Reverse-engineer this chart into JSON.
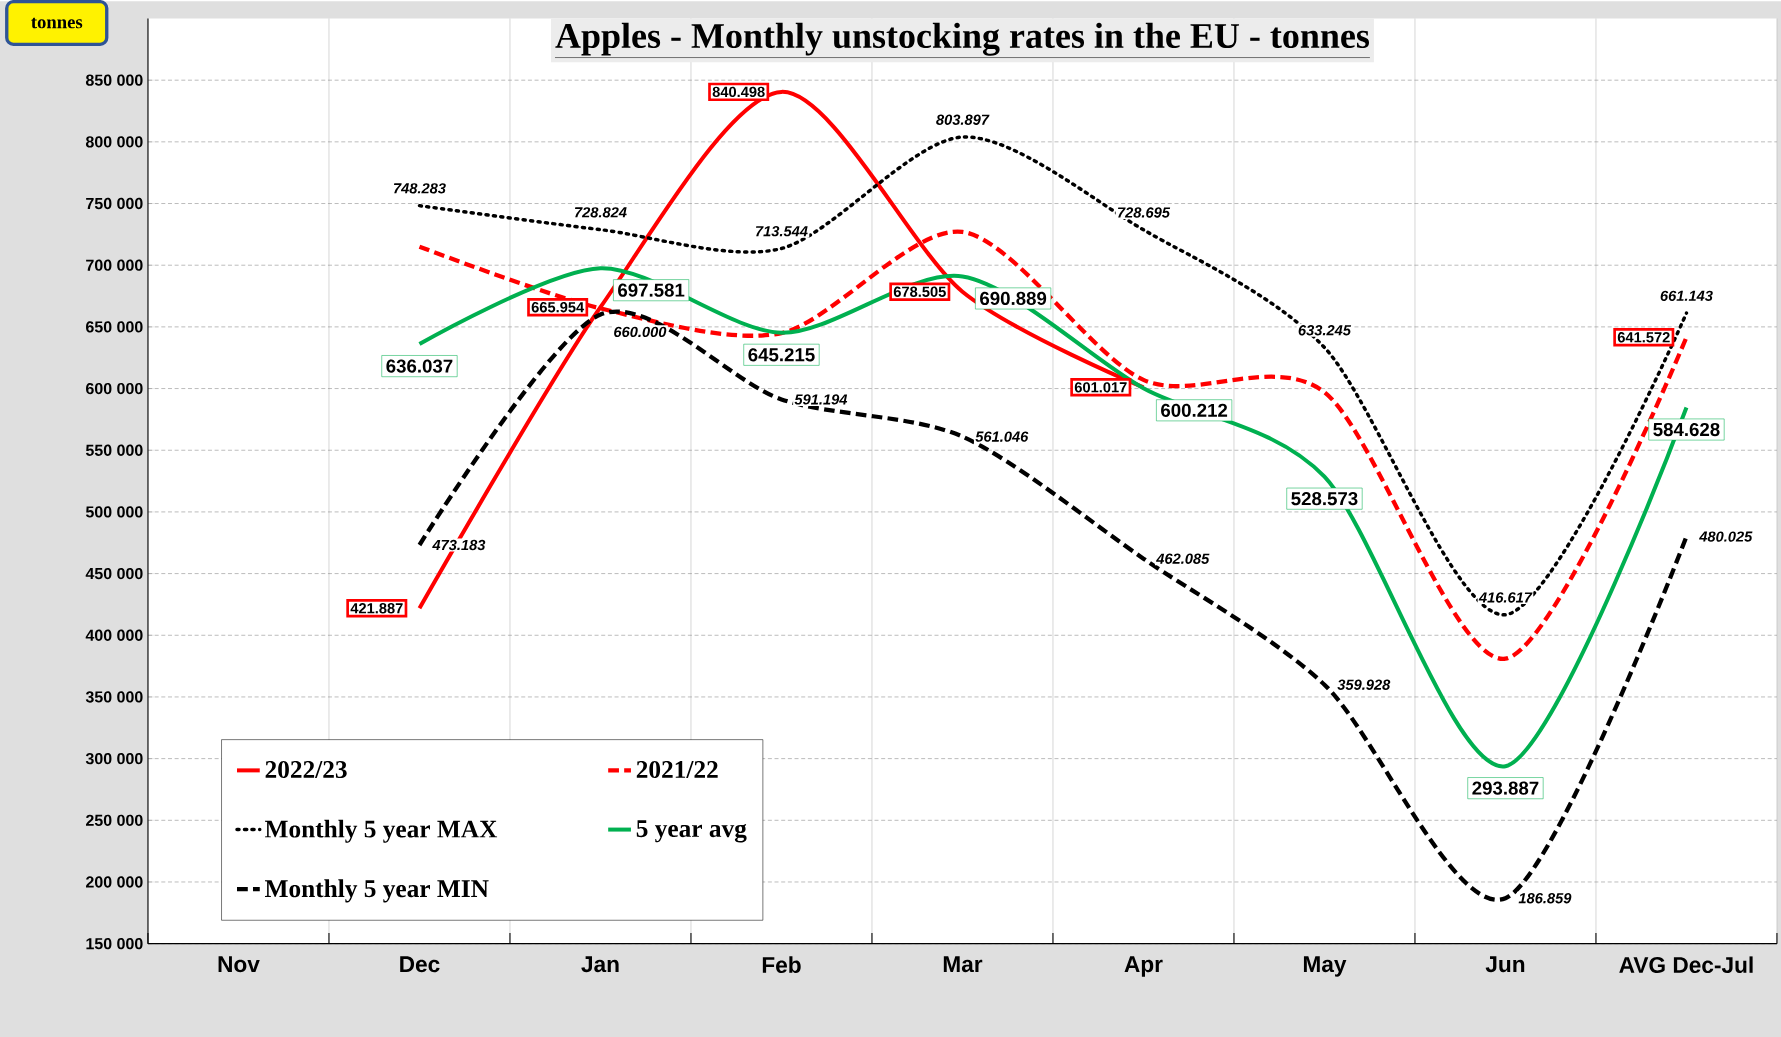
{
  "chart_data": {
    "type": "line",
    "title": "Apples - Monthly unstocking rates in the EU -  tonnes",
    "ylabel": "tonnes",
    "categories": [
      "Nov",
      "Dec",
      "Jan",
      "Feb",
      "Mar",
      "Apr",
      "May",
      "Jun",
      "AVG Dec-Jul"
    ],
    "ylim": [
      150000,
      900000
    ],
    "yticks": [
      {
        "value": 150000,
        "label": "150 000"
      },
      {
        "value": 200000,
        "label": "200 000"
      },
      {
        "value": 250000,
        "label": "250 000"
      },
      {
        "value": 300000,
        "label": "300 000"
      },
      {
        "value": 350000,
        "label": "350 000"
      },
      {
        "value": 400000,
        "label": "400 000"
      },
      {
        "value": 450000,
        "label": "450 000"
      },
      {
        "value": 500000,
        "label": "500 000"
      },
      {
        "value": 550000,
        "label": "550 000"
      },
      {
        "value": 600000,
        "label": "600 000"
      },
      {
        "value": 650000,
        "label": "650 000"
      },
      {
        "value": 700000,
        "label": "700 000"
      },
      {
        "value": 750000,
        "label": "750 000"
      },
      {
        "value": 800000,
        "label": "800 000"
      },
      {
        "value": 850000,
        "label": "850 000"
      }
    ],
    "grid": true,
    "legend": "bottom left",
    "marker": "none",
    "series": [
      {
        "name": "2022/23",
        "color": "#ff0000",
        "line_style": "solid",
        "values": [
          null,
          421887,
          665954,
          840498,
          678505,
          601017,
          null,
          null,
          null
        ],
        "value_labels": [
          null,
          "421.887",
          "665.954",
          "840.498",
          "678.505",
          "601.017",
          null,
          null,
          null
        ]
      },
      {
        "name": "2021/22",
        "color": "#ff0000",
        "line_style": "dashed",
        "values": [
          null,
          715000,
          665000,
          645000,
          727000,
          607000,
          597000,
          381000,
          641572
        ],
        "value_labels": [
          null,
          null,
          null,
          null,
          null,
          null,
          null,
          null,
          "641.572"
        ]
      },
      {
        "name": "Monthly 5 year MAX",
        "color": "#000000",
        "line_style": "dotted",
        "values": [
          null,
          748283,
          728824,
          713544,
          803897,
          728695,
          633245,
          416617,
          661143
        ],
        "value_labels": [
          null,
          "748.283",
          "728.824",
          "713.544",
          "803.897",
          "728.695",
          "633.245",
          "416.617",
          "661.143"
        ]
      },
      {
        "name": "5 year avg",
        "color": "#00b050",
        "line_style": "solid",
        "values": [
          null,
          636037,
          697581,
          645215,
          690889,
          600212,
          528573,
          293887,
          584628
        ],
        "value_labels": [
          null,
          "636.037",
          "697.581",
          "645.215",
          "690.889",
          "600.212",
          "528.573",
          "293.887",
          "584.628"
        ]
      },
      {
        "name": "Monthly 5 year MIN",
        "color": "#000000",
        "line_style": "dashed",
        "values": [
          null,
          473183,
          660000,
          591194,
          561046,
          462085,
          359928,
          186859,
          480025
        ],
        "value_labels": [
          null,
          "473.183",
          "660.000",
          "591.194",
          "561.046",
          "462.085",
          "359.928",
          "186.859",
          "480.025"
        ]
      }
    ]
  }
}
